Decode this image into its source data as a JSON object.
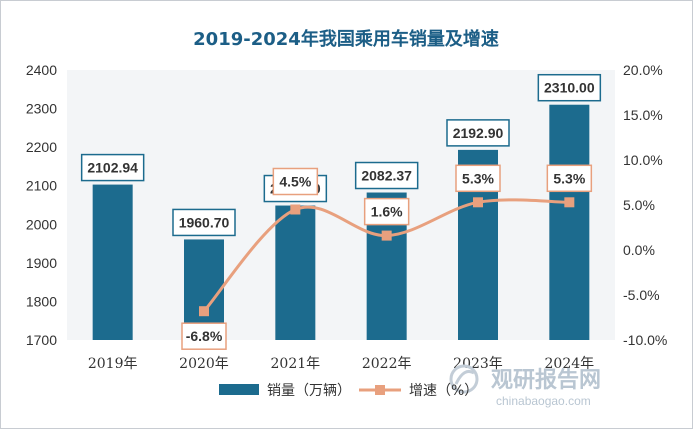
{
  "chart_data": {
    "type": "bar",
    "title": "2019-2024年我国乘用车销量及增速",
    "categories": [
      "2019年",
      "2020年",
      "2021年",
      "2022年",
      "2023年",
      "2024年"
    ],
    "series": [
      {
        "name": "销量（万辆）",
        "type": "bar",
        "axis": "left",
        "values": [
          2102.94,
          1960.7,
          2048.6,
          2082.37,
          2192.9,
          2310.0
        ],
        "labels": [
          "2102.94",
          "1960.70",
          "2048.60",
          "2082.37",
          "2192.90",
          "2310.00"
        ],
        "color": "#1c6b8e"
      },
      {
        "name": "增速（%）",
        "type": "line",
        "axis": "right",
        "values": [
          null,
          -6.8,
          4.5,
          1.6,
          5.3,
          5.3
        ],
        "labels": [
          "",
          "-6.8%",
          "4.5%",
          "1.6%",
          "5.3%",
          "5.3%"
        ],
        "color": "#e8a07e"
      }
    ],
    "y_left": {
      "min": 1700,
      "max": 2400,
      "ticks": [
        1700,
        1800,
        1900,
        2000,
        2100,
        2200,
        2300,
        2400
      ],
      "tick_labels": [
        "1700",
        "1800",
        "1900",
        "2000",
        "2100",
        "2200",
        "2300",
        "2400"
      ]
    },
    "y_right": {
      "min": -10,
      "max": 20,
      "ticks": [
        -10,
        -5,
        0,
        5,
        10,
        15,
        20
      ],
      "tick_labels": [
        "-10.0%",
        "-5.0%",
        "0.0%",
        "5.0%",
        "10.0%",
        "15.0%",
        "20.0%"
      ]
    },
    "grid": false,
    "legend_position": "bottom"
  },
  "watermark": {
    "brand": "观研报告网",
    "site": "chinabaogao.com"
  },
  "colors": {
    "title": "#1c5e86",
    "bar": "#1c6b8e",
    "line": "#e8a07e",
    "marker": "#e8a07e",
    "plot_bg": "#f3f5f7",
    "label_border": "#1c6b8e",
    "growth_label_border": "#e8a07e"
  }
}
